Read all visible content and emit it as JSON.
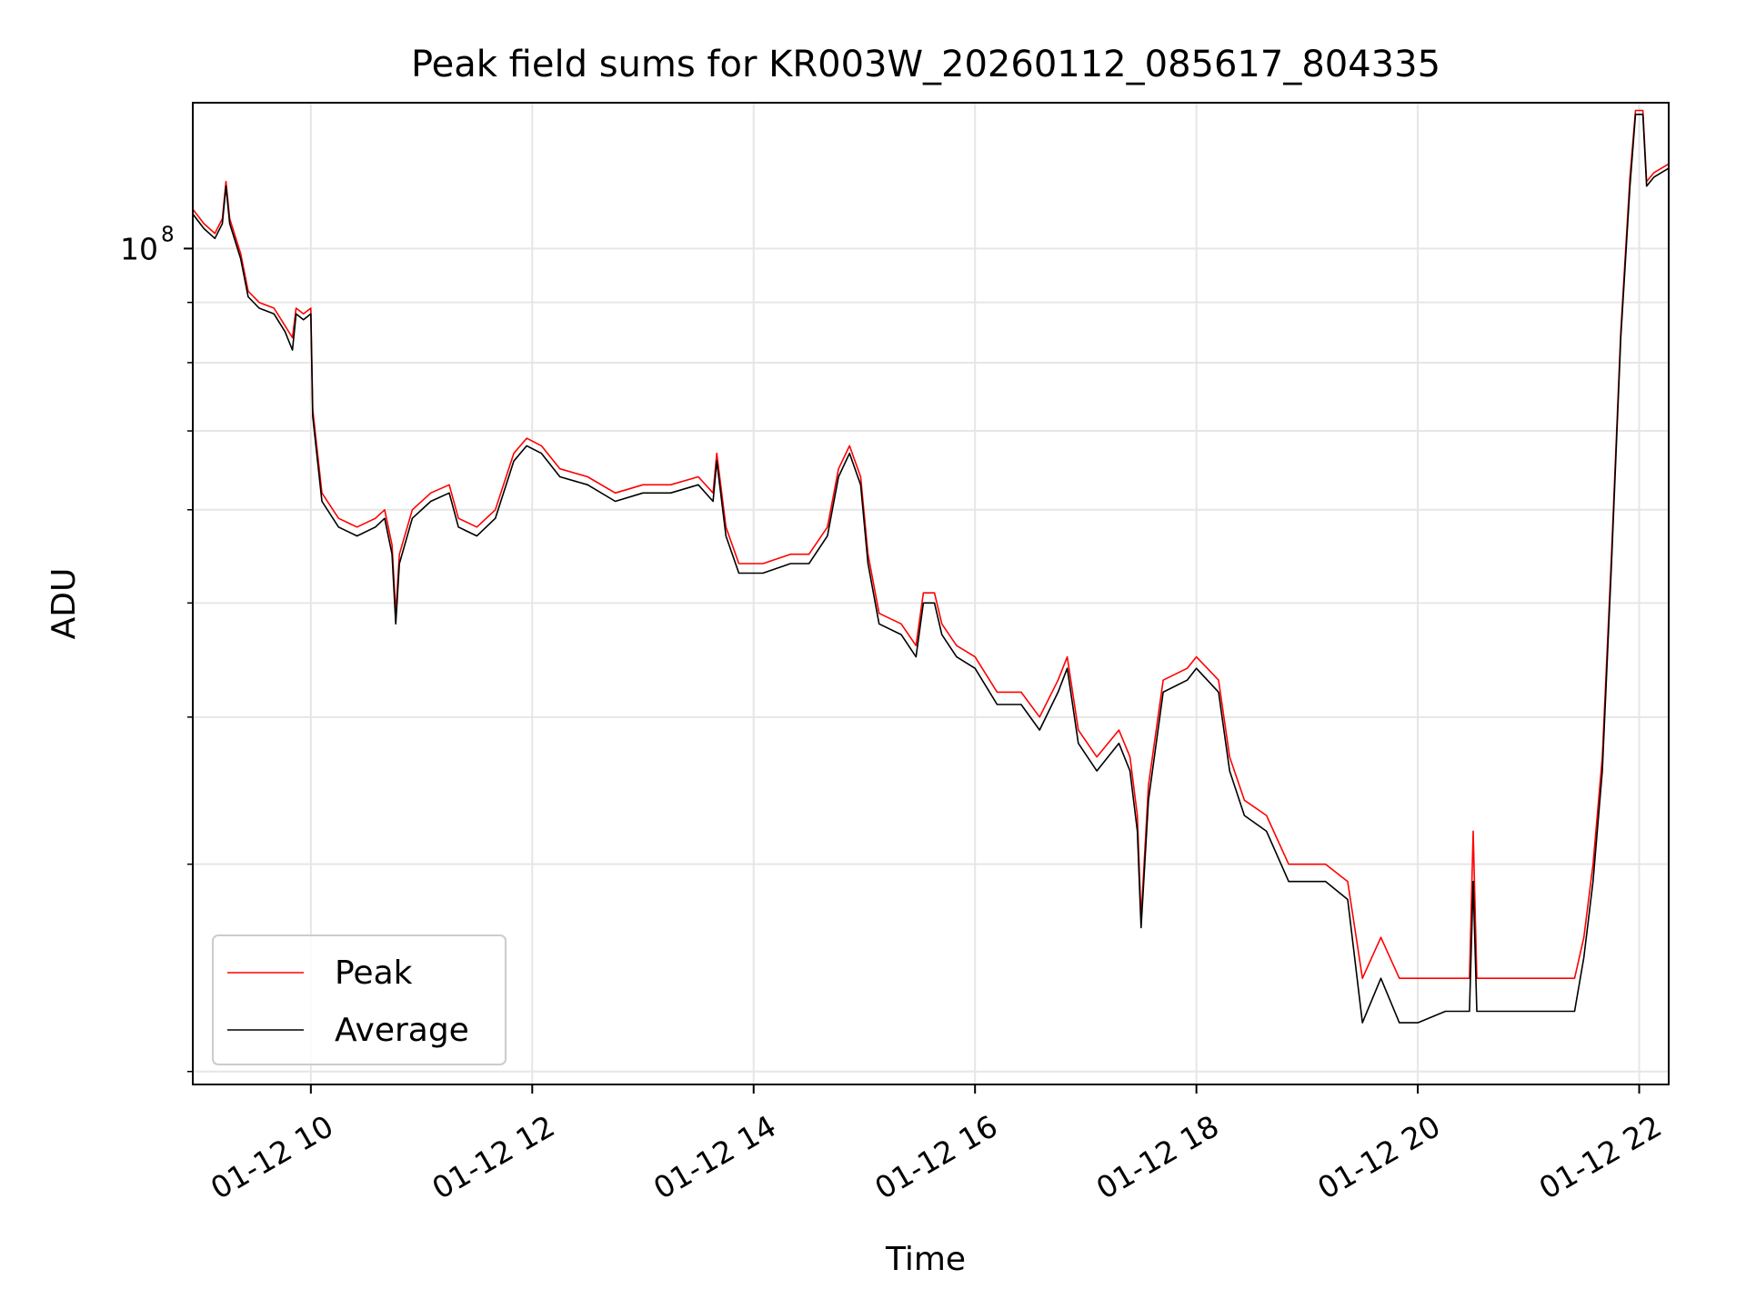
{
  "chart_data": {
    "type": "line",
    "title": "Peak field sums for KR003W_20260112_085617_804335",
    "xlabel": "Time",
    "ylabel": "ADU",
    "x_unit": "time (date 2026-01-12, hours)",
    "x_ticks": [
      {
        "value": "2026-01-12 10:00",
        "label": "01-12 10"
      },
      {
        "value": "2026-01-12 12:00",
        "label": "01-12 12"
      },
      {
        "value": "2026-01-12 14:00",
        "label": "01-12 14"
      },
      {
        "value": "2026-01-12 16:00",
        "label": "01-12 16"
      },
      {
        "value": "2026-01-12 18:00",
        "label": "01-12 18"
      },
      {
        "value": "2026-01-12 20:00",
        "label": "01-12 20"
      },
      {
        "value": "2026-01-12 22:00",
        "label": "01-12 22"
      }
    ],
    "xlim": [
      "2026-01-12 08:56",
      "2026-01-12 22:16"
    ],
    "y_scale": "log",
    "ylim": [
      19500000,
      133000000
    ],
    "y_ticks": [
      {
        "value": 100000000,
        "label_base": "10",
        "label_exp": "8"
      }
    ],
    "y_minor_ticks": [
      20000000,
      30000000,
      40000000,
      50000000,
      60000000,
      70000000,
      80000000,
      90000000
    ],
    "grid": true,
    "legend": "lower-left",
    "series": [
      {
        "name": "Peak",
        "color": "#ff0000",
        "points": [
          [
            "2026-01-12 08:56",
            108000000
          ],
          [
            "2026-01-12 09:02",
            105000000
          ],
          [
            "2026-01-12 09:08",
            103000000
          ],
          [
            "2026-01-12 09:12",
            106000000
          ],
          [
            "2026-01-12 09:14",
            114000000
          ],
          [
            "2026-01-12 09:16",
            106000000
          ],
          [
            "2026-01-12 09:22",
            99000000
          ],
          [
            "2026-01-12 09:26",
            92000000
          ],
          [
            "2026-01-12 09:32",
            90000000
          ],
          [
            "2026-01-12 09:40",
            89000000
          ],
          [
            "2026-01-12 09:46",
            86000000
          ],
          [
            "2026-01-12 09:50",
            84000000
          ],
          [
            "2026-01-12 09:52",
            89000000
          ],
          [
            "2026-01-12 09:56",
            88000000
          ],
          [
            "2026-01-12 10:00",
            89000000
          ],
          [
            "2026-01-12 10:01",
            73000000
          ],
          [
            "2026-01-12 10:06",
            62000000
          ],
          [
            "2026-01-12 10:15",
            59000000
          ],
          [
            "2026-01-12 10:25",
            58000000
          ],
          [
            "2026-01-12 10:35",
            59000000
          ],
          [
            "2026-01-12 10:40",
            60000000
          ],
          [
            "2026-01-12 10:44",
            56000000
          ],
          [
            "2026-01-12 10:46",
            49000000
          ],
          [
            "2026-01-12 10:48",
            55000000
          ],
          [
            "2026-01-12 10:55",
            60000000
          ],
          [
            "2026-01-12 11:05",
            62000000
          ],
          [
            "2026-01-12 11:15",
            63000000
          ],
          [
            "2026-01-12 11:20",
            59000000
          ],
          [
            "2026-01-12 11:30",
            58000000
          ],
          [
            "2026-01-12 11:40",
            60000000
          ],
          [
            "2026-01-12 11:50",
            67000000
          ],
          [
            "2026-01-12 11:57",
            69000000
          ],
          [
            "2026-01-12 12:05",
            68000000
          ],
          [
            "2026-01-12 12:15",
            65000000
          ],
          [
            "2026-01-12 12:30",
            64000000
          ],
          [
            "2026-01-12 12:45",
            62000000
          ],
          [
            "2026-01-12 13:00",
            63000000
          ],
          [
            "2026-01-12 13:15",
            63000000
          ],
          [
            "2026-01-12 13:30",
            64000000
          ],
          [
            "2026-01-12 13:38",
            62000000
          ],
          [
            "2026-01-12 13:40",
            67000000
          ],
          [
            "2026-01-12 13:45",
            58000000
          ],
          [
            "2026-01-12 13:52",
            54000000
          ],
          [
            "2026-01-12 14:05",
            54000000
          ],
          [
            "2026-01-12 14:20",
            55000000
          ],
          [
            "2026-01-12 14:30",
            55000000
          ],
          [
            "2026-01-12 14:40",
            58000000
          ],
          [
            "2026-01-12 14:46",
            65000000
          ],
          [
            "2026-01-12 14:52",
            68000000
          ],
          [
            "2026-01-12 14:58",
            64000000
          ],
          [
            "2026-01-12 15:02",
            55000000
          ],
          [
            "2026-01-12 15:08",
            49000000
          ],
          [
            "2026-01-12 15:20",
            48000000
          ],
          [
            "2026-01-12 15:28",
            46000000
          ],
          [
            "2026-01-12 15:32",
            51000000
          ],
          [
            "2026-01-12 15:38",
            51000000
          ],
          [
            "2026-01-12 15:42",
            48000000
          ],
          [
            "2026-01-12 15:50",
            46000000
          ],
          [
            "2026-01-12 16:00",
            45000000
          ],
          [
            "2026-01-12 16:12",
            42000000
          ],
          [
            "2026-01-12 16:25",
            42000000
          ],
          [
            "2026-01-12 16:35",
            40000000
          ],
          [
            "2026-01-12 16:45",
            43000000
          ],
          [
            "2026-01-12 16:50",
            45000000
          ],
          [
            "2026-01-12 16:56",
            39000000
          ],
          [
            "2026-01-12 17:06",
            37000000
          ],
          [
            "2026-01-12 17:18",
            39000000
          ],
          [
            "2026-01-12 17:24",
            37000000
          ],
          [
            "2026-01-12 17:28",
            33000000
          ],
          [
            "2026-01-12 17:30",
            27000000
          ],
          [
            "2026-01-12 17:34",
            35000000
          ],
          [
            "2026-01-12 17:42",
            43000000
          ],
          [
            "2026-01-12 17:55",
            44000000
          ],
          [
            "2026-01-12 18:00",
            45000000
          ],
          [
            "2026-01-12 18:12",
            43000000
          ],
          [
            "2026-01-12 18:18",
            37000000
          ],
          [
            "2026-01-12 18:26",
            34000000
          ],
          [
            "2026-01-12 18:38",
            33000000
          ],
          [
            "2026-01-12 18:50",
            30000000
          ],
          [
            "2026-01-12 19:00",
            30000000
          ],
          [
            "2026-01-12 19:10",
            30000000
          ],
          [
            "2026-01-12 19:22",
            29000000
          ],
          [
            "2026-01-12 19:30",
            24000000
          ],
          [
            "2026-01-12 19:40",
            26000000
          ],
          [
            "2026-01-12 19:50",
            24000000
          ],
          [
            "2026-01-12 20:00",
            24000000
          ],
          [
            "2026-01-12 20:15",
            24000000
          ],
          [
            "2026-01-12 20:28",
            24000000
          ],
          [
            "2026-01-12 20:30",
            32000000
          ],
          [
            "2026-01-12 20:32",
            24000000
          ],
          [
            "2026-01-12 20:45",
            24000000
          ],
          [
            "2026-01-12 21:00",
            24000000
          ],
          [
            "2026-01-12 21:15",
            24000000
          ],
          [
            "2026-01-12 21:25",
            24000000
          ],
          [
            "2026-01-12 21:30",
            26000000
          ],
          [
            "2026-01-12 21:35",
            30000000
          ],
          [
            "2026-01-12 21:40",
            37000000
          ],
          [
            "2026-01-12 21:45",
            55000000
          ],
          [
            "2026-01-12 21:50",
            85000000
          ],
          [
            "2026-01-12 21:55",
            115000000
          ],
          [
            "2026-01-12 21:58",
            131000000
          ],
          [
            "2026-01-12 22:02",
            131000000
          ],
          [
            "2026-01-12 22:04",
            114000000
          ],
          [
            "2026-01-12 22:08",
            116000000
          ],
          [
            "2026-01-12 22:16",
            118000000
          ]
        ]
      },
      {
        "name": "Average",
        "color": "#000000",
        "points": [
          [
            "2026-01-12 08:56",
            107000000
          ],
          [
            "2026-01-12 09:02",
            104000000
          ],
          [
            "2026-01-12 09:08",
            102000000
          ],
          [
            "2026-01-12 09:12",
            105000000
          ],
          [
            "2026-01-12 09:14",
            113000000
          ],
          [
            "2026-01-12 09:16",
            105000000
          ],
          [
            "2026-01-12 09:22",
            98000000
          ],
          [
            "2026-01-12 09:26",
            91000000
          ],
          [
            "2026-01-12 09:32",
            89000000
          ],
          [
            "2026-01-12 09:40",
            88000000
          ],
          [
            "2026-01-12 09:46",
            85000000
          ],
          [
            "2026-01-12 09:50",
            82000000
          ],
          [
            "2026-01-12 09:52",
            88000000
          ],
          [
            "2026-01-12 09:56",
            87000000
          ],
          [
            "2026-01-12 10:00",
            88000000
          ],
          [
            "2026-01-12 10:01",
            72000000
          ],
          [
            "2026-01-12 10:06",
            61000000
          ],
          [
            "2026-01-12 10:15",
            58000000
          ],
          [
            "2026-01-12 10:25",
            57000000
          ],
          [
            "2026-01-12 10:35",
            58000000
          ],
          [
            "2026-01-12 10:40",
            59000000
          ],
          [
            "2026-01-12 10:44",
            55000000
          ],
          [
            "2026-01-12 10:46",
            48000000
          ],
          [
            "2026-01-12 10:48",
            54000000
          ],
          [
            "2026-01-12 10:55",
            59000000
          ],
          [
            "2026-01-12 11:05",
            61000000
          ],
          [
            "2026-01-12 11:15",
            62000000
          ],
          [
            "2026-01-12 11:20",
            58000000
          ],
          [
            "2026-01-12 11:30",
            57000000
          ],
          [
            "2026-01-12 11:40",
            59000000
          ],
          [
            "2026-01-12 11:50",
            66000000
          ],
          [
            "2026-01-12 11:57",
            68000000
          ],
          [
            "2026-01-12 12:05",
            67000000
          ],
          [
            "2026-01-12 12:15",
            64000000
          ],
          [
            "2026-01-12 12:30",
            63000000
          ],
          [
            "2026-01-12 12:45",
            61000000
          ],
          [
            "2026-01-12 13:00",
            62000000
          ],
          [
            "2026-01-12 13:15",
            62000000
          ],
          [
            "2026-01-12 13:30",
            63000000
          ],
          [
            "2026-01-12 13:38",
            61000000
          ],
          [
            "2026-01-12 13:40",
            66000000
          ],
          [
            "2026-01-12 13:45",
            57000000
          ],
          [
            "2026-01-12 13:52",
            53000000
          ],
          [
            "2026-01-12 14:05",
            53000000
          ],
          [
            "2026-01-12 14:20",
            54000000
          ],
          [
            "2026-01-12 14:30",
            54000000
          ],
          [
            "2026-01-12 14:40",
            57000000
          ],
          [
            "2026-01-12 14:46",
            64000000
          ],
          [
            "2026-01-12 14:52",
            67000000
          ],
          [
            "2026-01-12 14:58",
            63000000
          ],
          [
            "2026-01-12 15:02",
            54000000
          ],
          [
            "2026-01-12 15:08",
            48000000
          ],
          [
            "2026-01-12 15:20",
            47000000
          ],
          [
            "2026-01-12 15:28",
            45000000
          ],
          [
            "2026-01-12 15:32",
            50000000
          ],
          [
            "2026-01-12 15:38",
            50000000
          ],
          [
            "2026-01-12 15:42",
            47000000
          ],
          [
            "2026-01-12 15:50",
            45000000
          ],
          [
            "2026-01-12 16:00",
            44000000
          ],
          [
            "2026-01-12 16:12",
            41000000
          ],
          [
            "2026-01-12 16:25",
            41000000
          ],
          [
            "2026-01-12 16:35",
            39000000
          ],
          [
            "2026-01-12 16:45",
            42000000
          ],
          [
            "2026-01-12 16:50",
            44000000
          ],
          [
            "2026-01-12 16:56",
            38000000
          ],
          [
            "2026-01-12 17:06",
            36000000
          ],
          [
            "2026-01-12 17:18",
            38000000
          ],
          [
            "2026-01-12 17:24",
            36000000
          ],
          [
            "2026-01-12 17:28",
            32000000
          ],
          [
            "2026-01-12 17:30",
            26500000
          ],
          [
            "2026-01-12 17:34",
            34000000
          ],
          [
            "2026-01-12 17:42",
            42000000
          ],
          [
            "2026-01-12 17:55",
            43000000
          ],
          [
            "2026-01-12 18:00",
            44000000
          ],
          [
            "2026-01-12 18:12",
            42000000
          ],
          [
            "2026-01-12 18:18",
            36000000
          ],
          [
            "2026-01-12 18:26",
            33000000
          ],
          [
            "2026-01-12 18:38",
            32000000
          ],
          [
            "2026-01-12 18:50",
            29000000
          ],
          [
            "2026-01-12 19:00",
            29000000
          ],
          [
            "2026-01-12 19:10",
            29000000
          ],
          [
            "2026-01-12 19:22",
            28000000
          ],
          [
            "2026-01-12 19:30",
            22000000
          ],
          [
            "2026-01-12 19:40",
            24000000
          ],
          [
            "2026-01-12 19:50",
            22000000
          ],
          [
            "2026-01-12 20:00",
            22000000
          ],
          [
            "2026-01-12 20:15",
            22500000
          ],
          [
            "2026-01-12 20:28",
            22500000
          ],
          [
            "2026-01-12 20:30",
            29000000
          ],
          [
            "2026-01-12 20:32",
            22500000
          ],
          [
            "2026-01-12 20:45",
            22500000
          ],
          [
            "2026-01-12 21:00",
            22500000
          ],
          [
            "2026-01-12 21:15",
            22500000
          ],
          [
            "2026-01-12 21:25",
            22500000
          ],
          [
            "2026-01-12 21:30",
            25000000
          ],
          [
            "2026-01-12 21:35",
            29000000
          ],
          [
            "2026-01-12 21:40",
            36000000
          ],
          [
            "2026-01-12 21:45",
            54000000
          ],
          [
            "2026-01-12 21:50",
            84000000
          ],
          [
            "2026-01-12 21:55",
            113000000
          ],
          [
            "2026-01-12 21:58",
            130000000
          ],
          [
            "2026-01-12 22:02",
            130000000
          ],
          [
            "2026-01-12 22:04",
            113000000
          ],
          [
            "2026-01-12 22:08",
            115000000
          ],
          [
            "2026-01-12 22:16",
            117000000
          ]
        ]
      }
    ]
  }
}
